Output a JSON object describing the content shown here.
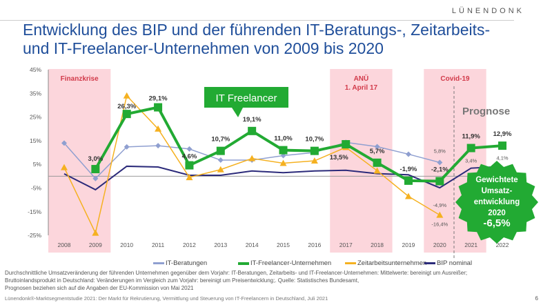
{
  "logo": "LÜNENDONK",
  "title_line1": "Entwicklung des BIP und der führenden IT-Beratungs-, Zeitarbeits-",
  "title_line2": "und IT-Freelancer-Unternehmen von 2009 bis 2020",
  "chart_data": {
    "type": "line",
    "categories": [
      "2008",
      "2009",
      "2010",
      "2011",
      "2012",
      "2013",
      "2014",
      "2015",
      "2016",
      "2017",
      "2018",
      "2019",
      "2020",
      "2021",
      "2022"
    ],
    "ylim": [
      -25,
      45
    ],
    "yticks": [
      "45%",
      "35%",
      "25%",
      "15%",
      "5%",
      "-5%",
      "-15%",
      "-25%"
    ],
    "series": [
      {
        "name": "IT-Beratungen",
        "color": "#8f9fd0",
        "values": [
          14,
          -1,
          12.4,
          12.9,
          11.5,
          6.8,
          6.8,
          8.7,
          10,
          14.3,
          12.5,
          9.3,
          5.8,
          null,
          null
        ]
      },
      {
        "name": "IT-Freelancer-Unternehmen",
        "color": "#22aa33",
        "values": [
          null,
          3.0,
          26.3,
          29.1,
          4.6,
          10.7,
          19.1,
          11.0,
          10.7,
          13.5,
          5.7,
          -1.9,
          -2.1,
          11.9,
          12.9
        ]
      },
      {
        "name": "Zeitarbeitsunternehmen",
        "color": "#f5b120",
        "values": [
          3.7,
          -24,
          34,
          20,
          -0.5,
          2.8,
          7.5,
          5.5,
          6.5,
          12.2,
          2.3,
          -8.5,
          -16.4,
          null,
          null
        ]
      },
      {
        "name": "BIP nominal",
        "color": "#2b2a7a",
        "values": [
          1.0,
          -5.7,
          4.2,
          3.9,
          0.4,
          0.4,
          2.2,
          1.5,
          2.2,
          2.5,
          1.1,
          0.6,
          -4.9,
          3.4,
          4.1
        ]
      }
    ],
    "freelancer_labels": [
      "",
      "3,0%",
      "26,3%",
      "29,1%",
      "4,6%",
      "10,7%",
      "19,1%",
      "11,0%",
      "10,7%",
      "13,5%",
      "5,7%",
      "-1,9%",
      "-2,1%",
      "11,9%",
      "12,9%"
    ],
    "small_labels": [
      {
        "text": "5,8%",
        "year": "2020"
      },
      {
        "text": "-4,9%",
        "year": "2020"
      },
      {
        "text": "-16,4%",
        "year": "2020"
      },
      {
        "text": "3,4%",
        "year": "2021"
      },
      {
        "text": "4,1%",
        "year": "2022"
      }
    ],
    "bands": [
      {
        "label": "Finanzkrise",
        "from": "2008",
        "to": "2009"
      },
      {
        "label": "ANÜ",
        "label2": "1. April 17",
        "from": "2017",
        "to": "2018"
      },
      {
        "label": "Covid-19",
        "from": "2020",
        "to": "2021"
      }
    ],
    "forecast_label": "Prognose",
    "callout": "IT Freelancer",
    "badge": [
      "Gewichtete",
      "Umsatz-",
      "entwicklung",
      "2020",
      "-6,5%"
    ]
  },
  "notes": [
    "Durchschnittliche Umsatzveränderung der führenden Unternehmen gegenüber dem Vorjahr: IT-Beratungen, Zeitarbeits- und IT-Freelancer-Unternehmen: Mittelwerte: bereinigt um Ausreißer;",
    "Bruttoinlandsprodukt in Deutschland: Veränderungen im Vergleich zum Vorjahr: bereinigt um Preisentwicklung;. Quelle: Statistisches Bundesamt,",
    "Prognosen beziehen sich auf die Angaben der EU-Kommission von Mai 2021"
  ],
  "source": "Lünendonk®-Marktsegmentstudie 2021: Der Markt für Rekrutierung, Vermittlung und Steuerung von IT-Freelancern in Deutschland, Juli 2021",
  "page": "6"
}
